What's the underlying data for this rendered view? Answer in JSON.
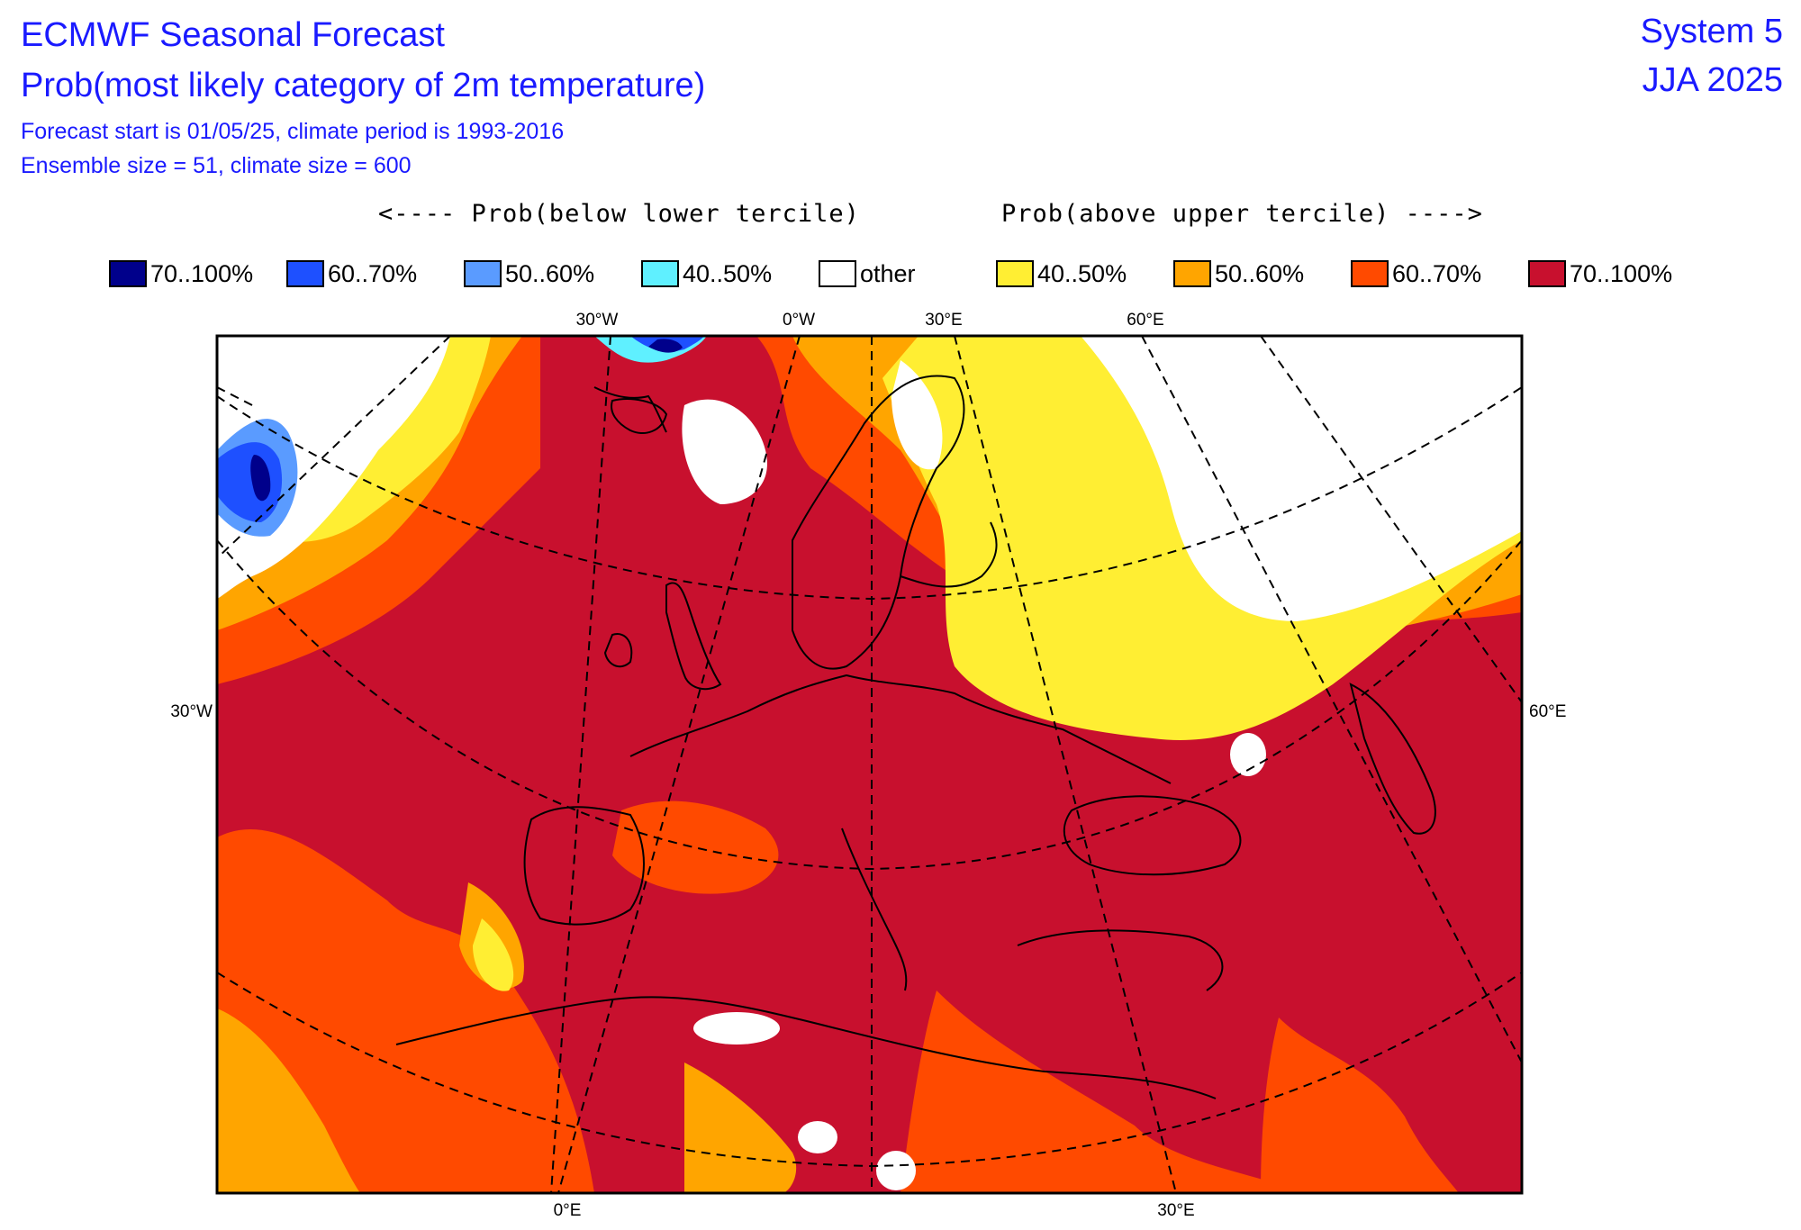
{
  "header": {
    "title": "ECMWF Seasonal Forecast",
    "subtitle": "Prob(most likely category of 2m temperature)",
    "forecast_info": "Forecast start is 01/05/25, climate period is 1993-2016",
    "ensemble_info": "Ensemble size = 51, climate size = 600",
    "system": "System 5",
    "season": "JJA 2025"
  },
  "legend": {
    "below_caption": "<---- Prob(below lower tercile)",
    "above_caption": "Prob(above upper tercile) ---->",
    "items": [
      {
        "label": "70..100%",
        "color": "#00008b"
      },
      {
        "label": "60..70%",
        "color": "#1e50ff"
      },
      {
        "label": "50..60%",
        "color": "#5a9bff"
      },
      {
        "label": "40..50%",
        "color": "#5ff0ff"
      },
      {
        "label": "other",
        "color": "#ffffff"
      },
      {
        "label": "40..50%",
        "color": "#ffee33"
      },
      {
        "label": "50..60%",
        "color": "#ffa500"
      },
      {
        "label": "60..70%",
        "color": "#ff4a00"
      },
      {
        "label": "70..100%",
        "color": "#c8102e"
      }
    ]
  },
  "map": {
    "region": "Europe, Mediterranean and North Atlantic",
    "projection": "conic",
    "top_ticks": [
      "30°W",
      "0°W",
      "30°E",
      "60°E"
    ],
    "bottom_ticks": [
      "0°E",
      "30°E"
    ],
    "left_tick": "30°W",
    "right_tick": "60°E",
    "graticule_style": "dashed",
    "coastline_color": "#000000"
  }
}
